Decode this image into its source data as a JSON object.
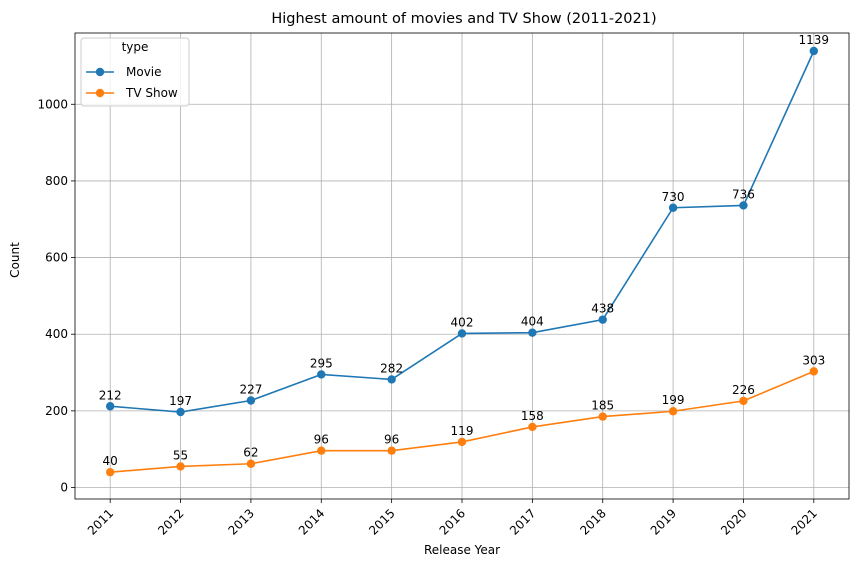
{
  "chart_data": {
    "type": "line",
    "title": "Highest amount of movies and TV Show (2011-2021)",
    "xlabel": "Release Year",
    "ylabel": "Count",
    "categories": [
      "2011",
      "2012",
      "2013",
      "2014",
      "2015",
      "2016",
      "2017",
      "2018",
      "2019",
      "2020",
      "2021"
    ],
    "ylim": [
      -30,
      1186
    ],
    "yticks": [
      0,
      200,
      400,
      600,
      800,
      1000
    ],
    "grid": true,
    "legend": {
      "title": "type",
      "placement": "top-left"
    },
    "series": [
      {
        "name": "Movie",
        "color": "#1f77b4",
        "values": [
          212,
          197,
          227,
          295,
          282,
          402,
          404,
          438,
          730,
          736,
          1139
        ]
      },
      {
        "name": "TV Show",
        "color": "#ff7f0e",
        "values": [
          40,
          55,
          62,
          96,
          96,
          119,
          158,
          185,
          199,
          226,
          303
        ]
      }
    ]
  }
}
